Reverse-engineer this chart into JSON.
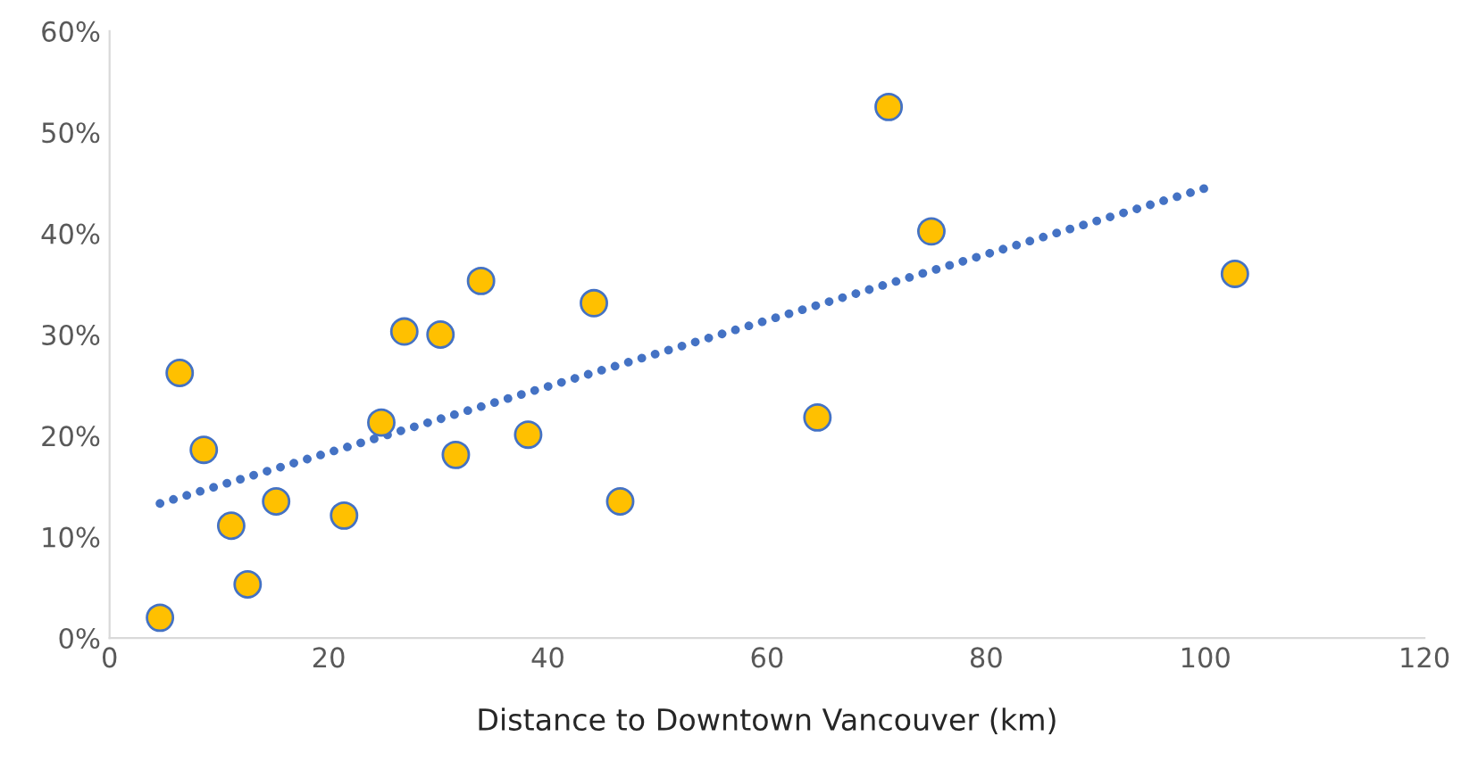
{
  "chart_data": {
    "type": "scatter",
    "xlabel": "Distance to Downtown Vancouver (km)",
    "xlim": [
      0,
      120
    ],
    "xticks": [
      0,
      20,
      40,
      60,
      80,
      100,
      120
    ],
    "ylim": [
      0,
      60
    ],
    "yticks": [
      {
        "value": 0,
        "label": "0%"
      },
      {
        "value": 10,
        "label": "10%"
      },
      {
        "value": 20,
        "label": "20%"
      },
      {
        "value": 30,
        "label": "30%"
      },
      {
        "value": 40,
        "label": "40%"
      },
      {
        "value": 50,
        "label": "50%"
      },
      {
        "value": 60,
        "label": "60%"
      }
    ],
    "grid": false,
    "legend": false,
    "series": [
      {
        "marker": "circle",
        "color": "#ffc000",
        "x": [
          4.6,
          6.4,
          8.6,
          11.1,
          12.6,
          15.2,
          21.4,
          24.8,
          26.9,
          30.2,
          31.6,
          33.9,
          38.2,
          44.2,
          46.6,
          64.6,
          71.1,
          75.0,
          102.7
        ],
        "values": [
          2.0,
          26.2,
          18.6,
          11.1,
          5.3,
          13.5,
          12.1,
          21.3,
          30.3,
          30.0,
          18.1,
          35.3,
          20.1,
          33.1,
          13.5,
          21.8,
          52.5,
          40.2,
          36.0
        ]
      },
      {
        "type": "line",
        "color": "#4472c4",
        "line_style": "dotted",
        "marker": "none",
        "x": [
          4.6,
          101
        ],
        "values": [
          13.3,
          44.8
        ]
      }
    ]
  }
}
